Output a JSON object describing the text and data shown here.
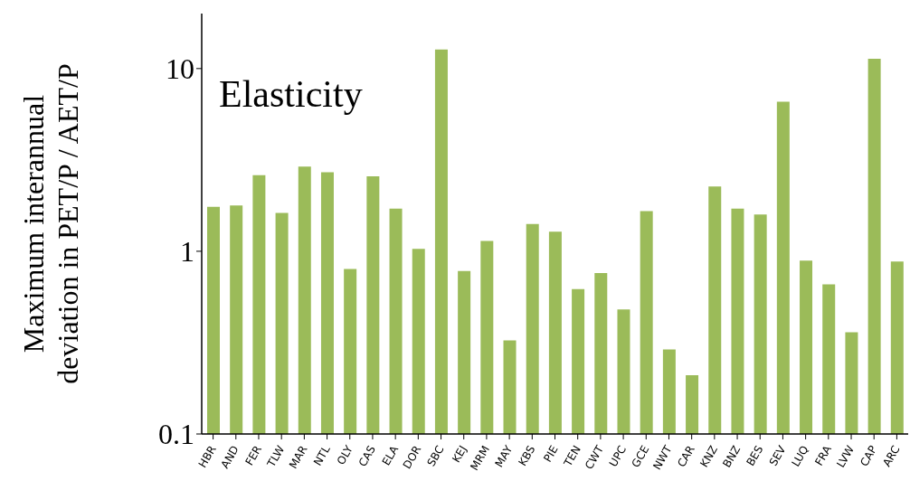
{
  "chart_data": {
    "type": "bar",
    "ylabel": "Maximum interannual\ndeviation in PET/P / AET/P",
    "annotations": [
      "Elasticity"
    ],
    "categories": [
      "HBR",
      "AND",
      "FER",
      "TLW",
      "MAR",
      "NTL",
      "OLY",
      "CAS",
      "ELA",
      "DOR",
      "SBC",
      "KEJ",
      "MRM",
      "MAY",
      "KBS",
      "PIE",
      "TEN",
      "CWT",
      "UPC",
      "GCE",
      "NWT",
      "CAR",
      "KNZ",
      "BNZ",
      "BES",
      "SEV",
      "LUQ",
      "FRA",
      "LVW",
      "CAP",
      "ARC"
    ],
    "values": [
      1.75,
      1.78,
      2.61,
      1.62,
      2.91,
      2.71,
      0.8,
      2.57,
      1.71,
      1.03,
      12.7,
      0.78,
      1.14,
      0.325,
      1.41,
      1.28,
      0.62,
      0.76,
      0.48,
      1.66,
      0.29,
      0.21,
      2.26,
      1.71,
      1.59,
      6.58,
      0.89,
      0.66,
      0.36,
      11.3,
      0.88
    ],
    "color": "#9bbb59",
    "log": true,
    "ylim": [
      0.1,
      20
    ],
    "yticks": [
      0.1,
      1,
      10
    ],
    "grid": false,
    "legend": false
  }
}
